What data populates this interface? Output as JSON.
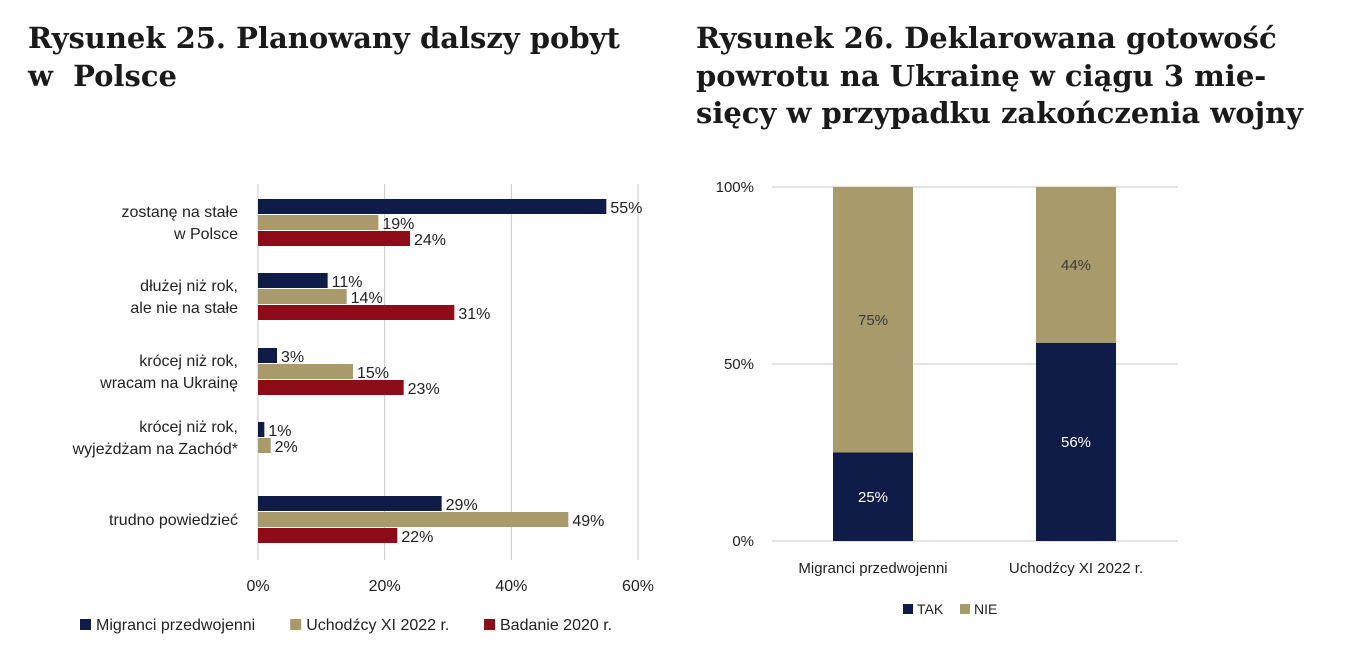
{
  "figure_left": {
    "title_lines": [
      "Rysunek 25. Planowany dalszy pobyt",
      "w  Polsce"
    ]
  },
  "figure_right": {
    "title_lines": [
      "Rysunek 26. Deklarowana gotowość",
      "powrotu na Ukrainę w ciągu 3 mie-",
      "sięcy w przypadku zakończenia wojny"
    ]
  },
  "colors": {
    "navy": "#0f1c47",
    "tan": "#a99a6b",
    "red": "#8e0b1a",
    "grid": "#c8c8c8"
  },
  "chart_data": [
    {
      "type": "bar",
      "orientation": "horizontal",
      "categories": [
        [
          "zostanę na stałe",
          "w Polsce"
        ],
        [
          "dłużej niż rok,",
          "ale nie na stałe"
        ],
        [
          "krócej niż rok,",
          "wracam na Ukrainę"
        ],
        [
          "krócej niż rok,",
          "wyjeżdżam na Zachód*"
        ],
        [
          "trudno powiedzieć"
        ]
      ],
      "series": [
        {
          "name": "Migranci przedwojenni",
          "color": "#0f1c47",
          "values": [
            55,
            11,
            3,
            1,
            29
          ],
          "labels": [
            "55%",
            "11%",
            "3%",
            "1%",
            "29%"
          ]
        },
        {
          "name": "Uchodźcy XI 2022 r.",
          "color": "#a99a6b",
          "values": [
            19,
            14,
            15,
            2,
            49
          ],
          "labels": [
            "19%",
            "14%",
            "15%",
            "2%",
            "49%"
          ]
        },
        {
          "name": "Badanie 2020 r.",
          "color": "#8e0b1a",
          "values": [
            24,
            31,
            23,
            null,
            22
          ],
          "labels": [
            "24%",
            "31%",
            "23%",
            "",
            "22%"
          ]
        }
      ],
      "xlim": [
        0,
        60
      ],
      "xticks": [
        "0%",
        "20%",
        "40%",
        "60%"
      ],
      "grid": true,
      "legend_position": "bottom"
    },
    {
      "type": "bar",
      "stacked": true,
      "categories": [
        "Migranci przedwojenni",
        "Uchodźcy XI 2022 r."
      ],
      "series": [
        {
          "name": "TAK",
          "color": "#0f1c47",
          "values": [
            25,
            56
          ],
          "labels": [
            "25%",
            "56%"
          ]
        },
        {
          "name": "NIE",
          "color": "#a99a6b",
          "values": [
            75,
            44
          ],
          "labels": [
            "75%",
            "44%"
          ]
        }
      ],
      "ylim": [
        0,
        100
      ],
      "yticks": [
        "0%",
        "50%",
        "100%"
      ],
      "grid": true,
      "legend_position": "bottom"
    }
  ]
}
